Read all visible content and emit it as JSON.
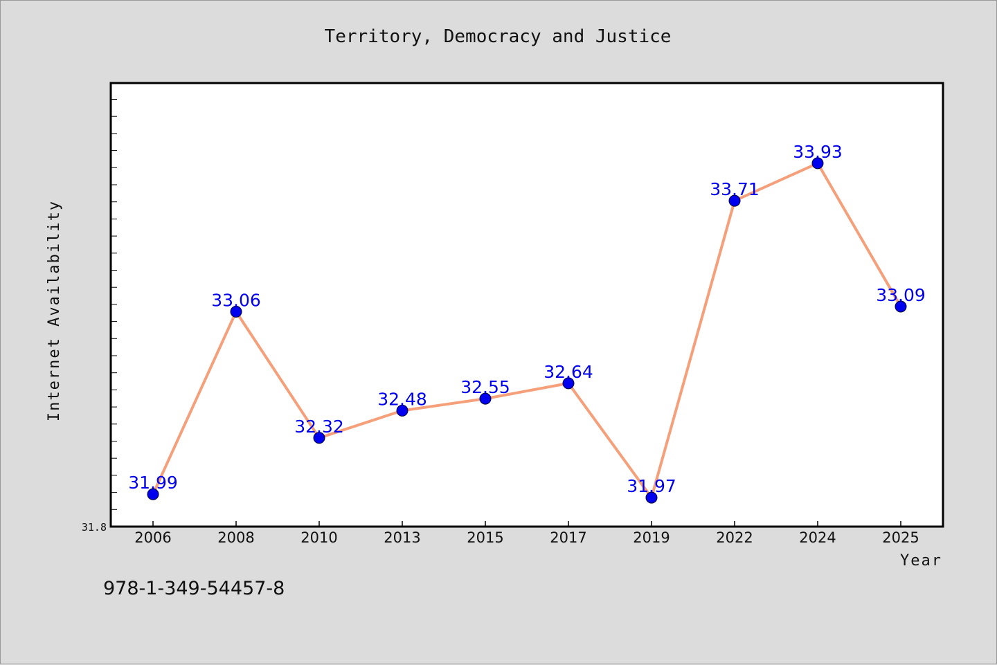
{
  "chart_data": {
    "type": "line",
    "title": "Territory, Democracy and Justice",
    "xlabel": "Year",
    "ylabel": "Internet Availability",
    "categories": [
      "2006",
      "2008",
      "2010",
      "2013",
      "2015",
      "2017",
      "2019",
      "2022",
      "2024",
      "2025"
    ],
    "series": [
      {
        "values": [
          31.99,
          33.06,
          32.32,
          32.48,
          32.55,
          32.64,
          31.97,
          33.71,
          33.93,
          33.09
        ],
        "data_labels": [
          "31.99",
          "33.06",
          "32.32",
          "32.48",
          "32.55",
          "32.64",
          "31.97",
          "33.71",
          "33.93",
          "33.09"
        ]
      }
    ],
    "ylim": [
      31.8,
      34.4
    ],
    "y_tick_labels": [
      "31.8"
    ],
    "grid": false,
    "colors": {
      "line": "#f5a07a",
      "marker": "#0000ee",
      "label": "#0000ee",
      "plot_bg": "#ffffff",
      "figure_bg": "#dcdcdc"
    }
  },
  "footer": {
    "isbn": "978-1-349-54457-8"
  }
}
